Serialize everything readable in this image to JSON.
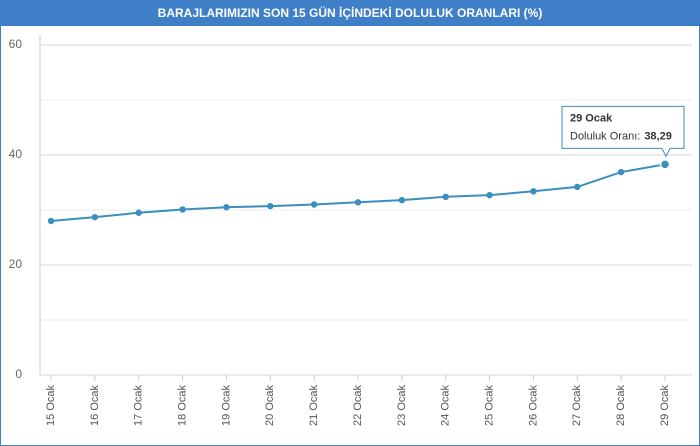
{
  "chart_data": {
    "type": "line",
    "title": "BARAJLARIMIZIN SON 15 GÜN İÇİNDEKİ DOLULUK ORANLARI (%)",
    "categories": [
      "15 Ocak",
      "16 Ocak",
      "17 Ocak",
      "18 Ocak",
      "19 Ocak",
      "20 Ocak",
      "21 Ocak",
      "22 Ocak",
      "23 Ocak",
      "24 Ocak",
      "25 Ocak",
      "26 Ocak",
      "27 Ocak",
      "28 Ocak",
      "29 Ocak"
    ],
    "series": [
      {
        "name": "Doluluk Oranı:",
        "color": "#3a8fbf",
        "values": [
          28.0,
          28.7,
          29.5,
          30.1,
          30.5,
          30.7,
          31.0,
          31.4,
          31.8,
          32.4,
          32.7,
          33.4,
          34.2,
          36.9,
          38.29
        ],
        "value_labels": [
          null,
          null,
          null,
          null,
          null,
          null,
          null,
          null,
          null,
          null,
          null,
          null,
          null,
          null,
          "38,29"
        ]
      }
    ],
    "ylim": [
      0,
      60
    ],
    "yticks": [
      0,
      20,
      40,
      60
    ],
    "grid": true
  }
}
